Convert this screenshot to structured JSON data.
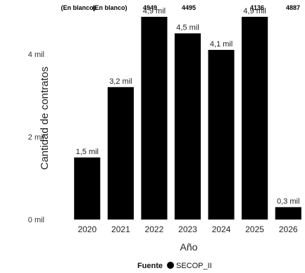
{
  "chart_data": {
    "type": "bar",
    "categories": [
      "2020",
      "2021",
      "2022",
      "2023",
      "2024",
      "2025",
      "2026"
    ],
    "values": [
      1500,
      3200,
      4900,
      4500,
      4100,
      4900,
      300
    ],
    "data_labels": [
      "1,5 mil",
      "3,2 mil",
      "4,9 mil",
      "4,5 mil",
      "4,1 mil",
      "4,9 mil",
      "0,3 mil"
    ],
    "header_labels": [
      "(En blanco)",
      "(En blanco)",
      "4949",
      "4495",
      "4136",
      "4887"
    ],
    "xlabel": "Año",
    "ylabel": "Cantidad de contratos",
    "yticks": [
      0,
      2000,
      4000
    ],
    "ytick_labels": [
      "0 mil",
      "2 mil",
      "4 mil"
    ],
    "ylim": [
      0,
      5000
    ],
    "bar_color": "#000000",
    "grid": false,
    "legend": {
      "title": "Fuente",
      "entries": [
        {
          "name": "SECOP_II",
          "color": "#000000"
        }
      ],
      "placement": "bottom-center"
    }
  }
}
